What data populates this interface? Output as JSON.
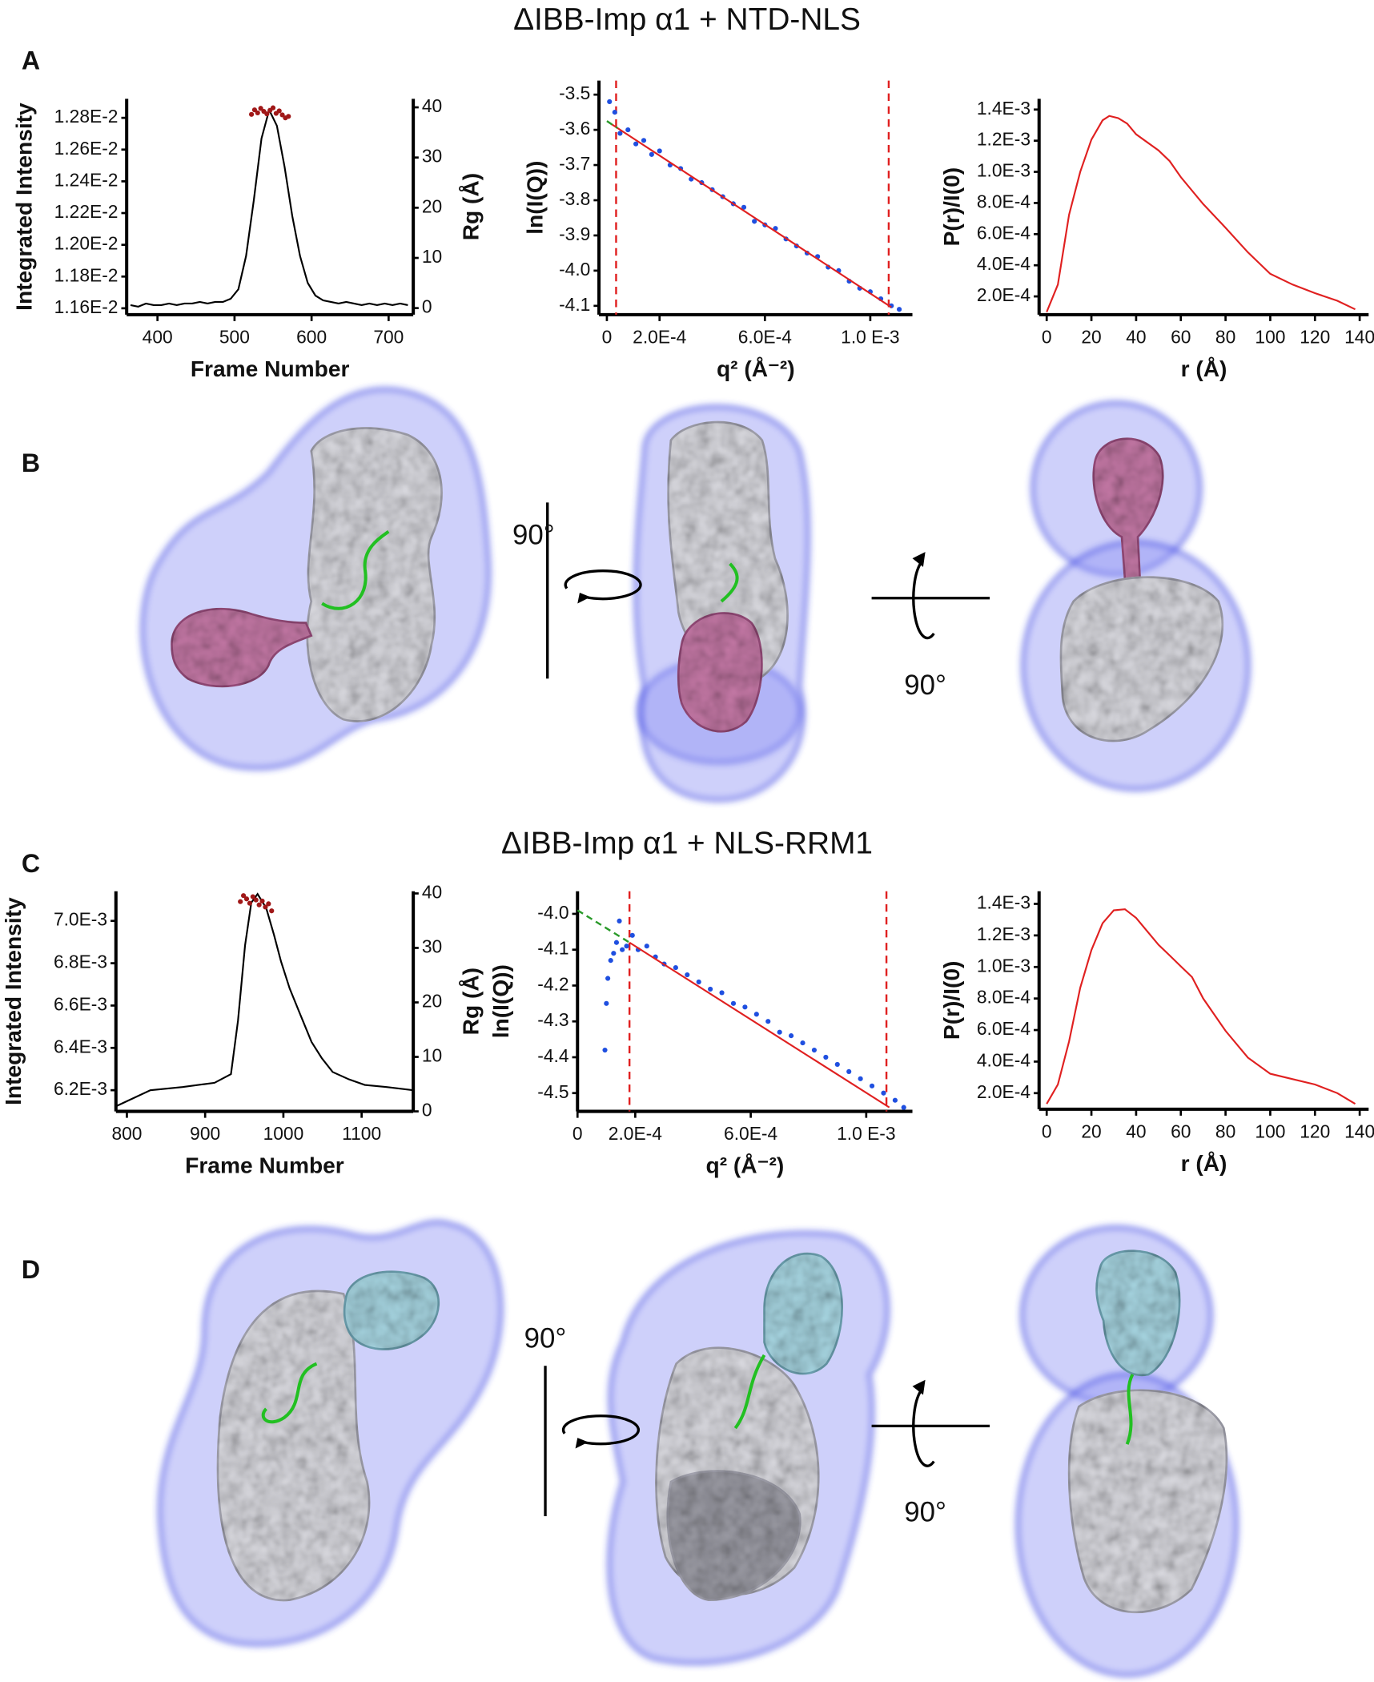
{
  "titles": [
    "ΔIBB-Imp α1 + NTD-NLS",
    "ΔIBB-Imp α1 + NLS-RRM1"
  ],
  "panel_labels": [
    "A",
    "B",
    "C",
    "D"
  ],
  "rotation_labels": [
    "90°",
    "90°",
    "90°",
    "90°"
  ],
  "chart_data": [
    {
      "type": "line",
      "x_label": "Frame Number",
      "y_label": "Integrated Intensity",
      "y2_label": "Rg (Å)",
      "xlim": [
        360,
        732
      ],
      "xticks": [
        400,
        500,
        600,
        700
      ],
      "ylim": [
        0.01156,
        0.01292
      ],
      "yticks": [
        {
          "value": 0.0116,
          "label": "1.16E-2"
        },
        {
          "value": 0.0118,
          "label": "1.18E-2"
        },
        {
          "value": 0.012,
          "label": "1.20E-2"
        },
        {
          "value": 0.0122,
          "label": "1.22E-2"
        },
        {
          "value": 0.0124,
          "label": "1.24E-2"
        },
        {
          "value": 0.0126,
          "label": "1.26E-2"
        },
        {
          "value": 0.0128,
          "label": "1.28E-2"
        }
      ],
      "y2lim": [
        -1.3,
        41.7
      ],
      "y2ticks": [
        0,
        10,
        20,
        30,
        40
      ],
      "series": [
        {
          "type": "line",
          "color": "#000000",
          "x": [
            365,
            375,
            385,
            395,
            405,
            415,
            425,
            435,
            445,
            455,
            465,
            475,
            485,
            495,
            505,
            515,
            525,
            535,
            545,
            555,
            565,
            575,
            585,
            595,
            605,
            615,
            625,
            635,
            645,
            655,
            665,
            675,
            685,
            695,
            705,
            715,
            725
          ],
          "values": [
            0.01162,
            0.01161,
            0.01163,
            0.01162,
            0.01162,
            0.01163,
            0.01162,
            0.01163,
            0.01163,
            0.01164,
            0.01163,
            0.01164,
            0.01164,
            0.01166,
            0.01172,
            0.01193,
            0.01228,
            0.01267,
            0.01285,
            0.01275,
            0.01249,
            0.01218,
            0.01193,
            0.01176,
            0.01168,
            0.01165,
            0.01164,
            0.01163,
            0.01164,
            0.01163,
            0.01162,
            0.01163,
            0.01162,
            0.01163,
            0.01162,
            0.01163,
            0.01162
          ]
        },
        {
          "type": "scatter",
          "axis": "y2",
          "color": "#a01818",
          "x": [
            522,
            526,
            530,
            534,
            538,
            542,
            546,
            550,
            554,
            558,
            562,
            566,
            570
          ],
          "values": [
            38.6,
            39.5,
            38.9,
            39.8,
            39.2,
            38.7,
            39.4,
            39.9,
            38.8,
            39.3,
            38.5,
            37.9,
            38.2
          ]
        }
      ]
    },
    {
      "type": "scatter",
      "x_label": "q² (Å⁻²)",
      "y_label": "ln(I(Q))",
      "xlim": [
        -3e-05,
        0.00116
      ],
      "xticks": [
        0,
        {
          "value": 0.0002,
          "label": "2.0E-4"
        },
        {
          "value": 0.0006,
          "label": "6.0E-4"
        },
        {
          "value": 0.001,
          "label": "1.0 E-3"
        }
      ],
      "ylim": [
        -4.125,
        -3.46
      ],
      "yticks": [
        -3.5,
        -3.6,
        -3.7,
        -3.8,
        -3.9,
        {
          "value": -4,
          "label": "-4.0"
        },
        -4.1
      ],
      "vlines": [
        3.5e-05,
        0.00107
      ],
      "vline_color": "#e02020",
      "series": [
        {
          "type": "scatter",
          "color": "#1f4fe0",
          "x": [
            1e-05,
            3e-05,
            5e-05,
            8e-05,
            0.00011,
            0.00014,
            0.00017,
            0.0002,
            0.00024,
            0.00028,
            0.00032,
            0.00036,
            0.0004,
            0.00044,
            0.00048,
            0.00052,
            0.00056,
            0.0006,
            0.00064,
            0.00068,
            0.00072,
            0.00076,
            0.0008,
            0.00084,
            0.00088,
            0.00092,
            0.00096,
            0.001,
            0.00104,
            0.00108,
            0.00111
          ],
          "values": [
            -3.52,
            -3.55,
            -3.61,
            -3.6,
            -3.64,
            -3.63,
            -3.67,
            -3.66,
            -3.7,
            -3.71,
            -3.74,
            -3.75,
            -3.77,
            -3.79,
            -3.81,
            -3.82,
            -3.86,
            -3.87,
            -3.88,
            -3.91,
            -3.93,
            -3.95,
            -3.96,
            -3.99,
            -4,
            -4.03,
            -4.05,
            -4.06,
            -4.08,
            -4.1,
            -4.11
          ]
        },
        {
          "type": "line",
          "color": "#e02020",
          "x": [
            2e-05,
            0.00108
          ],
          "values": [
            -3.585,
            -4.104
          ]
        },
        {
          "type": "line",
          "color": "#2a9a2a",
          "dash": true,
          "x": [
            0,
            4e-05
          ],
          "values": [
            -3.575,
            -3.595
          ]
        }
      ]
    },
    {
      "type": "line",
      "x_label": "r (Å)",
      "y_label": "P(r)/I(0)",
      "xlim": [
        -3.4,
        144
      ],
      "xticks": [
        0,
        20,
        40,
        60,
        80,
        100,
        120,
        140
      ],
      "ylim": [
        8.3e-05,
        0.001469
      ],
      "yticks": [
        {
          "value": 0.0002,
          "label": "2.0E-4"
        },
        {
          "value": 0.0004,
          "label": "4.0E-4"
        },
        {
          "value": 0.0006,
          "label": "6.0E-4"
        },
        {
          "value": 0.0008,
          "label": "8.0E-4"
        },
        {
          "value": 0.001,
          "label": "1.0E-3"
        },
        {
          "value": 0.0012,
          "label": "1.2E-3"
        },
        {
          "value": 0.0014,
          "label": "1.4E-3"
        }
      ],
      "series": [
        {
          "type": "line",
          "color": "#e02020",
          "x": [
            0,
            5,
            10,
            15,
            20,
            25,
            28,
            32,
            36,
            40,
            50,
            55,
            60,
            70,
            80,
            90,
            100,
            110,
            120,
            130,
            138
          ],
          "values": [
            0.0001,
            0.000276,
            0.000724,
            0.001,
            0.001207,
            0.001331,
            0.001359,
            0.001345,
            0.00131,
            0.001241,
            0.001138,
            0.001069,
            0.000966,
            0.000793,
            0.000641,
            0.000483,
            0.000345,
            0.000276,
            0.000221,
            0.000172,
            0.000117
          ]
        }
      ]
    },
    {
      "type": "line",
      "x_label": "Frame Number",
      "y_label": "Integrated Intensity",
      "y2_label": "Rg (Å)",
      "xlim": [
        786,
        1166
      ],
      "xticks": [
        800,
        900,
        1000,
        1100
      ],
      "ylim": [
        0.0061,
        0.00714
      ],
      "yticks": [
        {
          "value": 0.0062,
          "label": "6.2E-3"
        },
        {
          "value": 0.0064,
          "label": "6.4E-3"
        },
        {
          "value": 0.0066,
          "label": "6.6E-3"
        },
        {
          "value": 0.0068,
          "label": "6.8E-3"
        },
        {
          "value": 0.007,
          "label": "7.0E-3"
        }
      ],
      "y2lim": [
        0,
        40.4
      ],
      "y2ticks": [
        0,
        10,
        20,
        30,
        40
      ],
      "series": [
        {
          "type": "line",
          "color": "#000000",
          "x": [
            786,
            830,
            871,
            912,
            933,
            942,
            951,
            959,
            967,
            978,
            988,
            997,
            1008,
            1022,
            1036,
            1049,
            1063,
            1084,
            1104,
            1132,
            1166
          ],
          "values": [
            0.006124,
            0.0062,
            0.006215,
            0.006235,
            0.006276,
            0.006529,
            0.006884,
            0.007086,
            0.007127,
            0.007061,
            0.006934,
            0.006808,
            0.006681,
            0.006554,
            0.006428,
            0.006352,
            0.006286,
            0.006251,
            0.006225,
            0.006215,
            0.0062
          ]
        },
        {
          "type": "scatter",
          "axis": "y2",
          "color": "#a01818",
          "x": [
            945,
            949,
            953,
            957,
            961,
            965,
            969,
            973,
            977,
            981,
            985
          ],
          "values": [
            38.5,
            39.6,
            39,
            38.2,
            39.4,
            38.8,
            37.9,
            38.6,
            37.5,
            38.1,
            36.8
          ]
        }
      ]
    },
    {
      "type": "scatter",
      "x_label": "q² (Å⁻²)",
      "y_label": "ln(I(Q))",
      "xlim": [
        0,
        0.00116
      ],
      "xticks": [
        0,
        {
          "value": 0.0002,
          "label": "2.0E-4"
        },
        {
          "value": 0.0006,
          "label": "6.0E-4"
        },
        {
          "value": 0.001,
          "label": "1.0 E-3"
        }
      ],
      "ylim": [
        -4.551,
        -3.937
      ],
      "yticks": [
        {
          "value": -4,
          "label": "-4.0"
        },
        -4.1,
        -4.2,
        -4.3,
        -4.4,
        -4.5
      ],
      "vlines": [
        0.00018,
        0.00107
      ],
      "vline_color": "#e02020",
      "series": [
        {
          "type": "scatter",
          "color": "#1f4fe0",
          "x": [
            9.5e-05,
            0.0001,
            0.000105,
            0.000115,
            0.000125,
            0.000135,
            0.000145,
            0.000155,
            0.00017,
            0.00019,
            0.00021,
            0.00024,
            0.00027,
            0.0003,
            0.00034,
            0.00038,
            0.00042,
            0.00046,
            0.0005,
            0.00054,
            0.00058,
            0.00062,
            0.00066,
            0.0007,
            0.00074,
            0.00078,
            0.00082,
            0.00086,
            0.0009,
            0.00094,
            0.00098,
            0.00102,
            0.00106,
            0.0011,
            0.00113
          ],
          "values": [
            -4.38,
            -4.25,
            -4.18,
            -4.13,
            -4.11,
            -4.08,
            -4.02,
            -4.1,
            -4.09,
            -4.06,
            -4.1,
            -4.09,
            -4.12,
            -4.14,
            -4.15,
            -4.17,
            -4.19,
            -4.21,
            -4.22,
            -4.25,
            -4.26,
            -4.28,
            -4.3,
            -4.33,
            -4.34,
            -4.36,
            -4.38,
            -4.4,
            -4.42,
            -4.44,
            -4.46,
            -4.48,
            -4.5,
            -4.52,
            -4.54
          ]
        },
        {
          "type": "line",
          "color": "#e02020",
          "x": [
            0.00018,
            0.00108
          ],
          "values": [
            -4.08,
            -4.54
          ]
        },
        {
          "type": "line",
          "color": "#2a9a2a",
          "dash": true,
          "x": [
            0,
            0.00018
          ],
          "values": [
            -3.99,
            -4.08
          ]
        }
      ]
    },
    {
      "type": "line",
      "x_label": "r (Å)",
      "y_label": "P(r)/I(0)",
      "xlim": [
        -3.4,
        144
      ],
      "xticks": [
        0,
        20,
        40,
        60,
        80,
        100,
        120,
        140
      ],
      "ylim": [
        9.8e-05,
        0.00148
      ],
      "yticks": [
        {
          "value": 0.0002,
          "label": "2.0E-4"
        },
        {
          "value": 0.0004,
          "label": "4.0E-4"
        },
        {
          "value": 0.0006,
          "label": "6.0E-4"
        },
        {
          "value": 0.0008,
          "label": "8.0E-4"
        },
        {
          "value": 0.001,
          "label": "1.0E-3"
        },
        {
          "value": 0.0012,
          "label": "1.2E-3"
        },
        {
          "value": 0.0014,
          "label": "1.4E-3"
        }
      ],
      "series": [
        {
          "type": "line",
          "color": "#e02020",
          "x": [
            0,
            5,
            10,
            15,
            20,
            25,
            30,
            35,
            40,
            50,
            55,
            60,
            65,
            70,
            80,
            90,
            100,
            110,
            120,
            130,
            138
          ],
          "values": [
            0.000132,
            0.000255,
            0.000527,
            0.000868,
            0.001107,
            0.001277,
            0.001359,
            0.001366,
            0.001311,
            0.001141,
            0.001073,
            0.001004,
            0.000936,
            0.0008,
            0.000595,
            0.000425,
            0.000323,
            0.000289,
            0.000255,
            0.0002,
            0.000132
          ]
        }
      ]
    }
  ]
}
